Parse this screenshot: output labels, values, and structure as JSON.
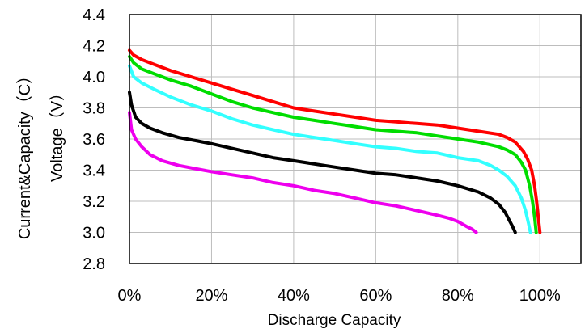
{
  "chart_data": {
    "type": "line",
    "xlabel": "Discharge Capacity",
    "ylabel_outer": "Current&Capacity（C）",
    "ylabel_inner": "Voltage（V）",
    "xlim": [
      0,
      110
    ],
    "ylim": [
      2.8,
      4.4
    ],
    "x_ticks": [
      0,
      20,
      40,
      60,
      80,
      100
    ],
    "x_tick_labels": [
      "0%",
      "20%",
      "40%",
      "60%",
      "80%",
      "100%"
    ],
    "y_ticks": [
      2.8,
      3.0,
      3.2,
      3.4,
      3.6,
      3.8,
      4.0,
      4.2,
      4.4
    ],
    "y_tick_labels": [
      "2.8",
      "3.0",
      "3.2",
      "3.4",
      "3.6",
      "3.8",
      "4.0",
      "4.2",
      "4.4"
    ],
    "grid": true,
    "series": [
      {
        "color": "#ff0000",
        "x": [
          0,
          1,
          3,
          6,
          10,
          15,
          20,
          25,
          30,
          35,
          40,
          45,
          50,
          55,
          60,
          65,
          70,
          75,
          80,
          85,
          90,
          92,
          94,
          96,
          97,
          98,
          98.7,
          99.2,
          99.6,
          100
        ],
        "y": [
          4.17,
          4.14,
          4.11,
          4.08,
          4.04,
          4.0,
          3.96,
          3.92,
          3.88,
          3.84,
          3.8,
          3.78,
          3.76,
          3.74,
          3.72,
          3.71,
          3.7,
          3.69,
          3.67,
          3.65,
          3.63,
          3.61,
          3.58,
          3.52,
          3.47,
          3.4,
          3.3,
          3.2,
          3.1,
          3.0
        ]
      },
      {
        "color": "#00dd00",
        "x": [
          0,
          1,
          3,
          6,
          10,
          15,
          20,
          25,
          30,
          35,
          40,
          45,
          50,
          55,
          60,
          65,
          70,
          75,
          80,
          85,
          90,
          92,
          94,
          95.5,
          96.5,
          97.5,
          98.2,
          98.7,
          99.1
        ],
        "y": [
          4.13,
          4.09,
          4.05,
          4.02,
          3.98,
          3.94,
          3.89,
          3.84,
          3.8,
          3.77,
          3.74,
          3.72,
          3.7,
          3.68,
          3.66,
          3.65,
          3.64,
          3.62,
          3.6,
          3.58,
          3.55,
          3.53,
          3.5,
          3.45,
          3.4,
          3.3,
          3.2,
          3.1,
          3.0
        ]
      },
      {
        "color": "#33ffff",
        "x": [
          0,
          1,
          3,
          6,
          10,
          15,
          20,
          25,
          30,
          35,
          40,
          45,
          50,
          55,
          60,
          65,
          70,
          75,
          80,
          85,
          88,
          90,
          92,
          94,
          95.5,
          96.5,
          97.2,
          97.7
        ],
        "y": [
          4.07,
          4.0,
          3.96,
          3.92,
          3.87,
          3.82,
          3.78,
          3.73,
          3.69,
          3.66,
          3.63,
          3.61,
          3.59,
          3.57,
          3.55,
          3.54,
          3.52,
          3.51,
          3.48,
          3.46,
          3.43,
          3.4,
          3.36,
          3.3,
          3.22,
          3.14,
          3.06,
          3.0
        ]
      },
      {
        "color": "#000000",
        "x": [
          0,
          0.5,
          1.5,
          3,
          5,
          8,
          12,
          16,
          20,
          25,
          30,
          35,
          40,
          45,
          50,
          55,
          60,
          65,
          70,
          75,
          80,
          85,
          88,
          90,
          91.5,
          92.5,
          93.3,
          94
        ],
        "y": [
          3.9,
          3.82,
          3.74,
          3.7,
          3.67,
          3.64,
          3.61,
          3.59,
          3.57,
          3.54,
          3.51,
          3.48,
          3.46,
          3.44,
          3.42,
          3.4,
          3.38,
          3.37,
          3.35,
          3.33,
          3.3,
          3.26,
          3.22,
          3.18,
          3.13,
          3.08,
          3.04,
          3.0
        ]
      },
      {
        "color": "#ee00ee",
        "x": [
          0,
          0.5,
          1.5,
          3,
          5,
          8,
          12,
          16,
          20,
          25,
          30,
          35,
          40,
          45,
          50,
          55,
          60,
          65,
          70,
          75,
          78,
          80,
          82,
          83.5,
          84.5
        ],
        "y": [
          3.77,
          3.66,
          3.6,
          3.55,
          3.5,
          3.46,
          3.43,
          3.41,
          3.39,
          3.37,
          3.35,
          3.32,
          3.3,
          3.27,
          3.25,
          3.22,
          3.19,
          3.17,
          3.14,
          3.11,
          3.09,
          3.07,
          3.04,
          3.02,
          3.0
        ]
      }
    ]
  }
}
